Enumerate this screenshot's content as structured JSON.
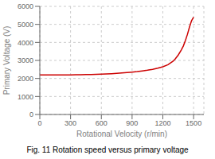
{
  "chart_data": {
    "type": "line",
    "title": "Fig. 11 Rotation speed versus primary voltage",
    "xlabel": "Rotational Velocity (r/min)",
    "ylabel": "Primary Voltage (V)",
    "x": [
      0,
      50,
      100,
      150,
      200,
      250,
      300,
      350,
      400,
      450,
      500,
      550,
      600,
      650,
      700,
      750,
      800,
      850,
      900,
      950,
      1000,
      1050,
      1100,
      1150,
      1200,
      1250,
      1300,
      1320,
      1350,
      1380,
      1400,
      1420,
      1440,
      1460,
      1480,
      1500
    ],
    "values": [
      2200,
      2198,
      2196,
      2196,
      2196,
      2198,
      2200,
      2203,
      2207,
      2212,
      2218,
      2228,
      2238,
      2250,
      2264,
      2280,
      2300,
      2322,
      2348,
      2378,
      2415,
      2458,
      2508,
      2568,
      2648,
      2760,
      2960,
      3080,
      3300,
      3580,
      3800,
      4100,
      4450,
      4850,
      5200,
      5400
    ],
    "color": "#cc0000",
    "xlim": [
      0,
      1600
    ],
    "ylim": [
      0,
      6000
    ],
    "xticks": [
      0,
      300,
      600,
      900,
      1200,
      1500
    ],
    "yticks": [
      0,
      1000,
      2000,
      3000,
      4000,
      5000,
      6000
    ],
    "grid": true
  }
}
